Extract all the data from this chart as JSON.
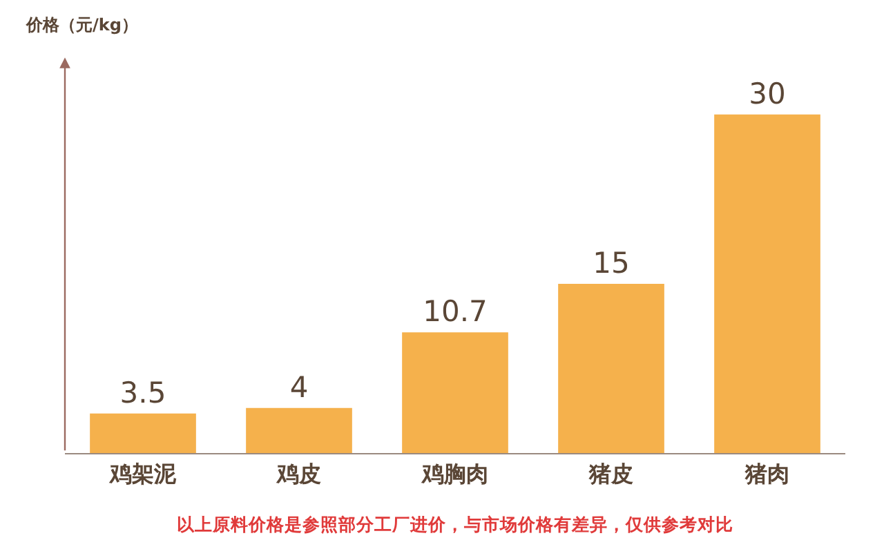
{
  "chart_data": {
    "type": "bar",
    "ylabel": "价格（元/kg）",
    "categories": [
      "鸡架泥",
      "鸡皮",
      "鸡胸肉",
      "猪皮",
      "猪肉"
    ],
    "values": [
      3.5,
      4,
      10.7,
      15,
      30
    ],
    "color": "#f5b14c",
    "data_labels": true,
    "annotations": [
      "以上原料价格是参照部分工厂进价，与市场价格有差异，仅供参考对比"
    ]
  }
}
